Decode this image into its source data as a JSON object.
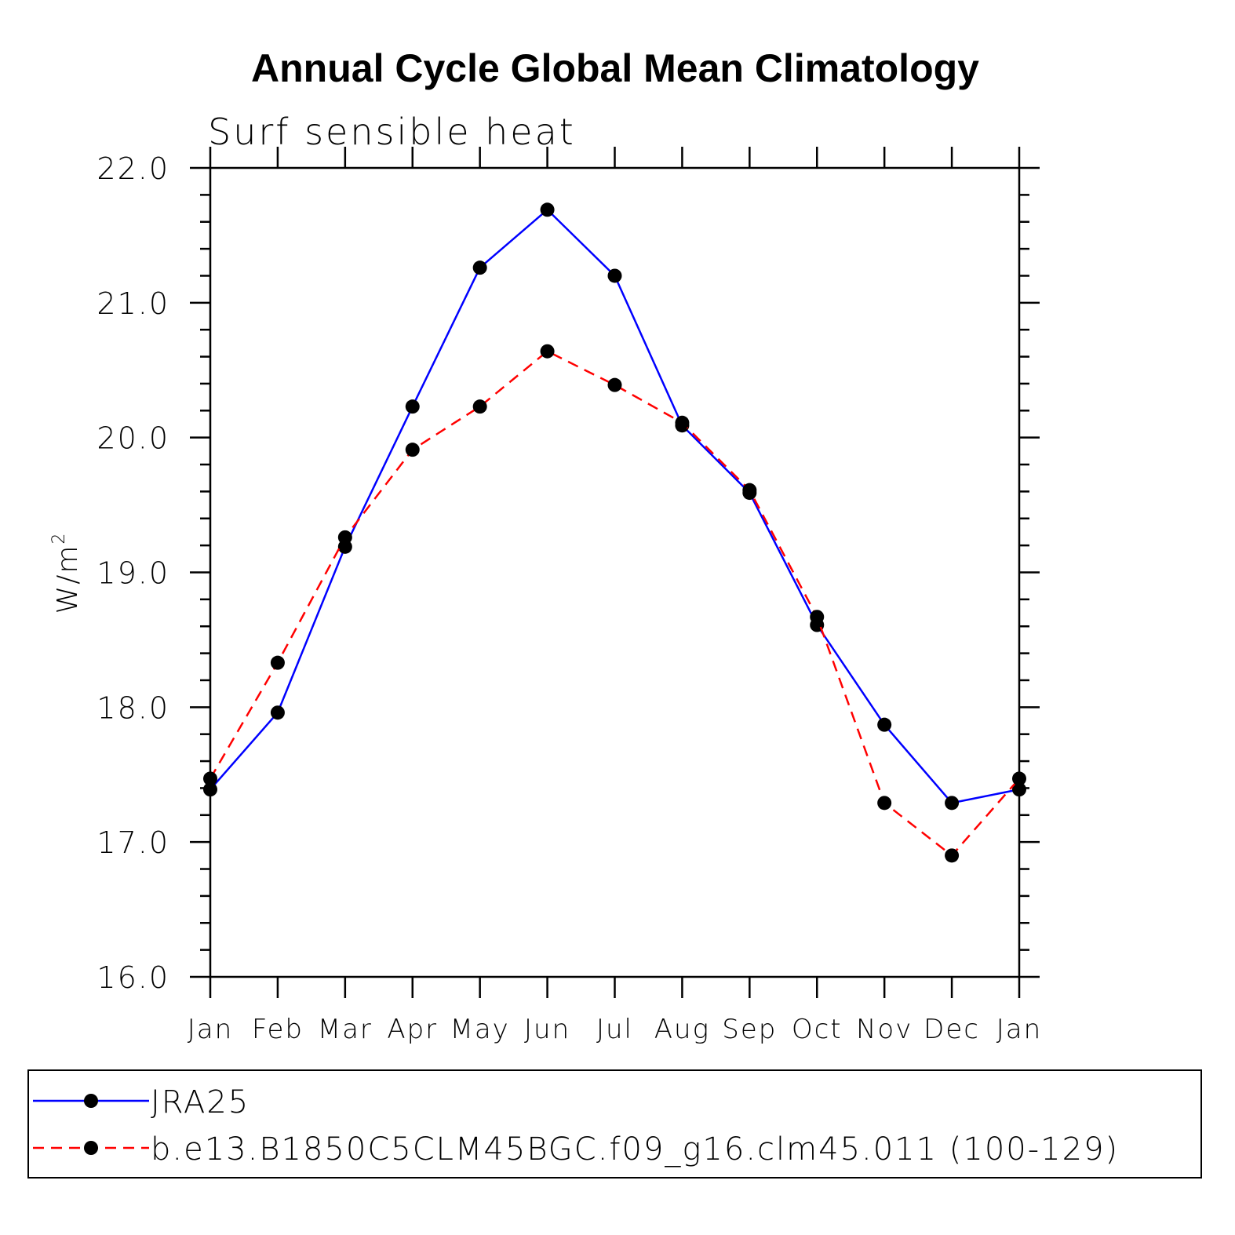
{
  "chart_data": {
    "type": "line",
    "title": "Annual Cycle Global Mean Climatology",
    "subtitle": "Surf sensible heat",
    "ylabel": "W/m",
    "ylabel_superscript": "2",
    "xlabel": "",
    "categories": [
      "Jan",
      "Feb",
      "Mar",
      "Apr",
      "May",
      "Jun",
      "Jul",
      "Aug",
      "Sep",
      "Oct",
      "Nov",
      "Dec",
      "Jan"
    ],
    "ylim": [
      16.0,
      22.0
    ],
    "yticks": [
      "16.0",
      "17.0",
      "18.0",
      "19.0",
      "20.0",
      "21.0",
      "22.0"
    ],
    "y_minor_step": 0.2,
    "grid": false,
    "legend_placement": "bottom",
    "series": [
      {
        "name": "JRA25",
        "color": "#0000ff",
        "dash": "solid",
        "marker": "filled-circle",
        "values": [
          17.39,
          17.96,
          19.19,
          20.23,
          21.26,
          21.69,
          21.2,
          20.09,
          19.59,
          18.61,
          17.87,
          17.29,
          17.39
        ]
      },
      {
        "name": "b.e13.B1850C5CLM45BGC.f09_g16.clm45.011 (100-129)",
        "color": "#ff0000",
        "dash": "dashed",
        "marker": "filled-circle",
        "values": [
          17.47,
          18.33,
          19.26,
          19.91,
          20.23,
          20.64,
          20.39,
          20.11,
          19.61,
          18.67,
          17.29,
          16.9,
          17.47
        ]
      }
    ]
  }
}
